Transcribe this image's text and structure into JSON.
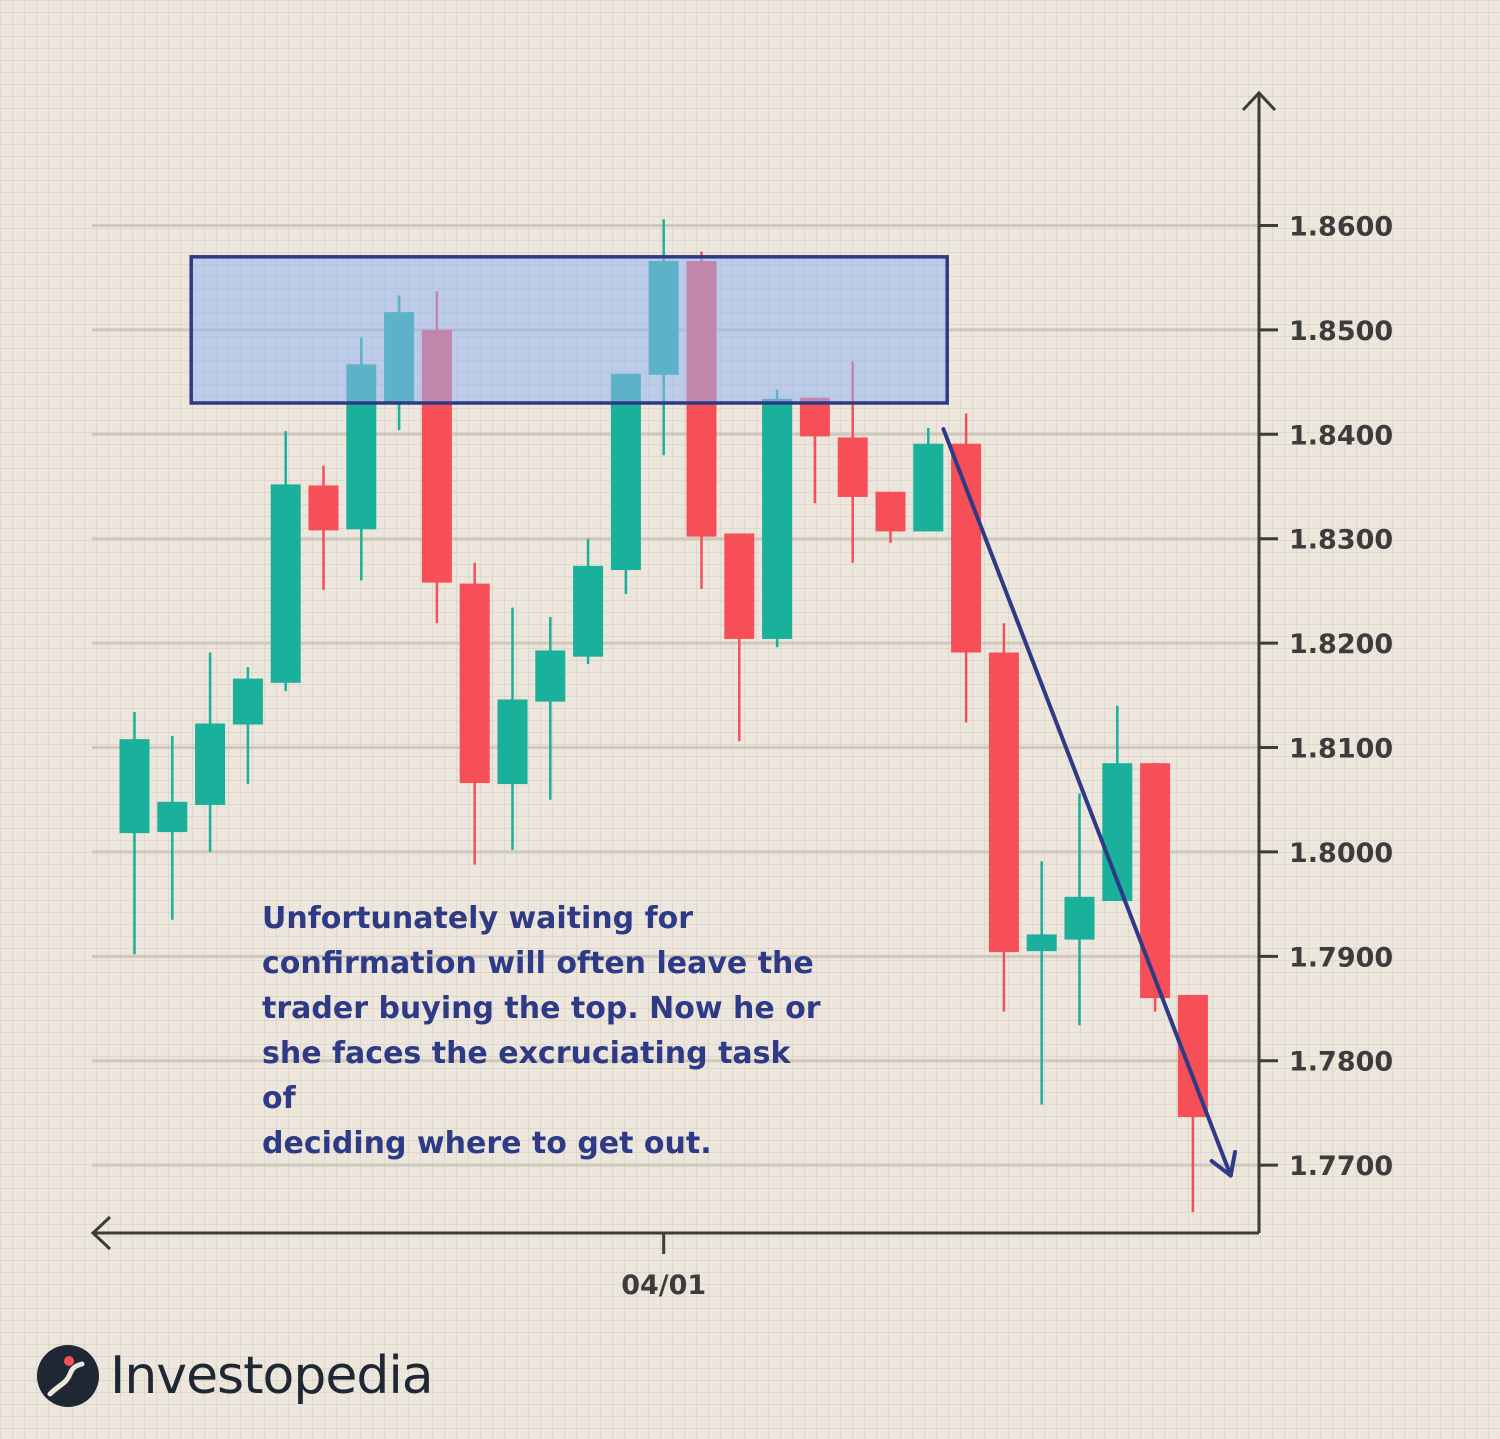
{
  "chart_data": {
    "type": "candlestick",
    "title": "",
    "xlabel": "",
    "ylabel": "",
    "ylim": [
      1.7635,
      1.8725
    ],
    "y_ticks": [
      "1.8600",
      "1.8500",
      "1.8400",
      "1.8300",
      "1.8200",
      "1.8100",
      "1.8000",
      "1.7900",
      "1.7800",
      "1.7700"
    ],
    "x_tick_label": "04/01",
    "x_tick_index": 14,
    "grid": true,
    "colors": {
      "up": "#19b09c",
      "down": "#f64f57",
      "zone": "#2e3a86",
      "arrow": "#2e3a86"
    },
    "candles": [
      {
        "open": 1.8018,
        "high": 1.8134,
        "low": 1.7902,
        "close": 1.8108
      },
      {
        "open": 1.8019,
        "high": 1.8111,
        "low": 1.7935,
        "close": 1.8048
      },
      {
        "open": 1.8045,
        "high": 1.8191,
        "low": 1.8,
        "close": 1.8123
      },
      {
        "open": 1.8122,
        "high": 1.8177,
        "low": 1.8065,
        "close": 1.8166
      },
      {
        "open": 1.8162,
        "high": 1.8403,
        "low": 1.8154,
        "close": 1.8352
      },
      {
        "open": 1.8351,
        "high": 1.837,
        "low": 1.8251,
        "close": 1.8308
      },
      {
        "open": 1.8309,
        "high": 1.8493,
        "low": 1.826,
        "close": 1.8467
      },
      {
        "open": 1.8431,
        "high": 1.8533,
        "low": 1.8404,
        "close": 1.8517
      },
      {
        "open": 1.85,
        "high": 1.8537,
        "low": 1.8219,
        "close": 1.8258
      },
      {
        "open": 1.8257,
        "high": 1.8277,
        "low": 1.7988,
        "close": 1.8066
      },
      {
        "open": 1.8065,
        "high": 1.8234,
        "low": 1.8002,
        "close": 1.8146
      },
      {
        "open": 1.8144,
        "high": 1.8225,
        "low": 1.805,
        "close": 1.8193
      },
      {
        "open": 1.8187,
        "high": 1.83,
        "low": 1.818,
        "close": 1.8274
      },
      {
        "open": 1.827,
        "high": 1.8455,
        "low": 1.8247,
        "close": 1.8458
      },
      {
        "open": 1.8457,
        "high": 1.8606,
        "low": 1.838,
        "close": 1.8566
      },
      {
        "open": 1.8566,
        "high": 1.8575,
        "low": 1.8252,
        "close": 1.8302
      },
      {
        "open": 1.8305,
        "high": 1.8305,
        "low": 1.8106,
        "close": 1.8204
      },
      {
        "open": 1.8204,
        "high": 1.8443,
        "low": 1.8196,
        "close": 1.8434
      },
      {
        "open": 1.8435,
        "high": 1.8435,
        "low": 1.8334,
        "close": 1.8398
      },
      {
        "open": 1.8397,
        "high": 1.847,
        "low": 1.8277,
        "close": 1.834
      },
      {
        "open": 1.8345,
        "high": 1.8345,
        "low": 1.8296,
        "close": 1.8307
      },
      {
        "open": 1.8307,
        "high": 1.8406,
        "low": 1.8307,
        "close": 1.8391
      },
      {
        "open": 1.8391,
        "high": 1.842,
        "low": 1.8124,
        "close": 1.8191
      },
      {
        "open": 1.8191,
        "high": 1.8219,
        "low": 1.7847,
        "close": 1.7904
      },
      {
        "open": 1.7905,
        "high": 1.7991,
        "low": 1.7758,
        "close": 1.7921
      },
      {
        "open": 1.7916,
        "high": 1.8056,
        "low": 1.7834,
        "close": 1.7957
      },
      {
        "open": 1.7953,
        "high": 1.814,
        "low": 1.7953,
        "close": 1.8085
      },
      {
        "open": 1.8085,
        "high": 1.8085,
        "low": 1.7847,
        "close": 1.786
      },
      {
        "open": 1.7863,
        "high": 1.7863,
        "low": 1.7655,
        "close": 1.7746
      }
    ],
    "resistance_zone": {
      "low": 1.843,
      "high": 1.857,
      "from_index": 1.5,
      "to_index": 21.5
    },
    "trend_arrow": {
      "from": {
        "index": 21.4,
        "value": 1.8405
      },
      "to": {
        "index": 29.0,
        "value": 1.769
      }
    },
    "annotation": "Unfortunately waiting for\nconfirmation will often leave the\ntrader buying the top.  Now he or\nshe faces the excruciating task of\ndeciding where to get out."
  },
  "brand": {
    "name": "Investopedia",
    "logo_icon": "investopedia-logo-icon"
  }
}
